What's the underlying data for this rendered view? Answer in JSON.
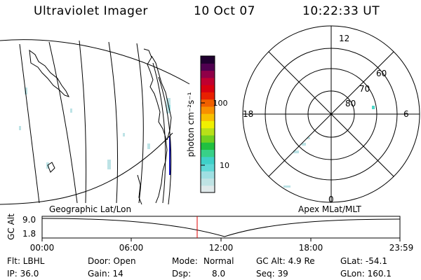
{
  "header": {
    "title": "Ultraviolet Imager",
    "date": "10 Oct 07",
    "time": "10:22:33 UT"
  },
  "colorbar": {
    "unit_label": "photon cm⁻²s⁻¹",
    "ticks": [
      "100",
      "10"
    ],
    "colors": [
      "#dfe9ea",
      "#bfe3e4",
      "#9fdfe2",
      "#5fd8d6",
      "#3fd0c8",
      "#38d088",
      "#20c040",
      "#70d020",
      "#b8e018",
      "#f0f000",
      "#f8c000",
      "#f89000",
      "#f06000",
      "#e82000",
      "#d80010",
      "#c00030",
      "#900048",
      "#500050",
      "#200030"
    ]
  },
  "map": {
    "label": "Geographic Lat/Lon"
  },
  "polar": {
    "label": "Apex MLat/MLT",
    "mlt_labels": {
      "top": "12",
      "left": "18",
      "right": "6",
      "bottom": "0"
    },
    "lat_labels": [
      "60",
      "70",
      "80"
    ]
  },
  "altitude_plot": {
    "y_label": "GC Alt",
    "y_ticks": [
      "9.0",
      "1.8"
    ],
    "x_ticks": [
      "00:00",
      "06:00",
      "12:00",
      "18:00",
      "23:59"
    ],
    "current_marker_color": "#e00000"
  },
  "footer": {
    "filter": "Flt: LBHL",
    "ip": "IP: 36.0",
    "door": "Door: Open",
    "gain": "Gain: 14",
    "mode_label": "Mode:",
    "mode_value": "Normal",
    "dsp_label": "Dsp:",
    "dsp_value": "8.0",
    "gc_alt": "GC Alt: 4.9 Re",
    "seq": "Seq: 39",
    "glat": "GLat: -54.1",
    "glon": "GLon: 160.1"
  }
}
